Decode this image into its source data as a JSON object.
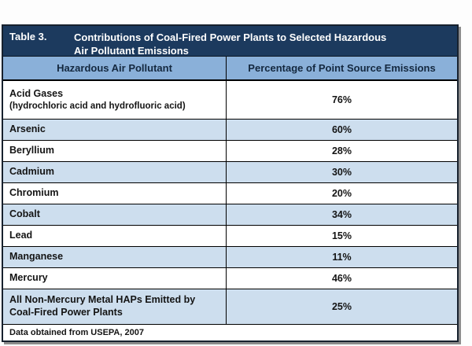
{
  "table": {
    "label": "Table 3.",
    "title_lines": [
      "Contributions of Coal-Fired Power Plants to Selected Hazardous",
      "Air Pollutant Emissions"
    ],
    "columns": [
      "Hazardous Air Pollutant",
      "Percentage of Point Source Emissions"
    ],
    "rows": [
      {
        "pollutant": "Acid Gases",
        "note": "(hydrochloric acid and hydrofluoric acid)",
        "percentage": "76%"
      },
      {
        "pollutant": "Arsenic",
        "percentage": "60%"
      },
      {
        "pollutant": "Beryllium",
        "percentage": "28%"
      },
      {
        "pollutant": "Cadmium",
        "percentage": "30%"
      },
      {
        "pollutant": "Chromium",
        "percentage": "20%"
      },
      {
        "pollutant": "Cobalt",
        "percentage": "34%"
      },
      {
        "pollutant": "Lead",
        "percentage": "15%"
      },
      {
        "pollutant": "Manganese",
        "percentage": "11%"
      },
      {
        "pollutant": "Mercury",
        "percentage": "46%"
      },
      {
        "pollutant": "All Non-Mercury Metal HAPs Emitted by Coal-Fired Power Plants",
        "percentage": "25%"
      }
    ],
    "source": "Data obtained from USEPA, 2007",
    "colors": {
      "navy": "#1c3a5e",
      "header-blue": "#8ab0d9",
      "row-blue": "#cddeee",
      "header-text": "#14283f",
      "shadow": "#8c8c8c"
    }
  }
}
